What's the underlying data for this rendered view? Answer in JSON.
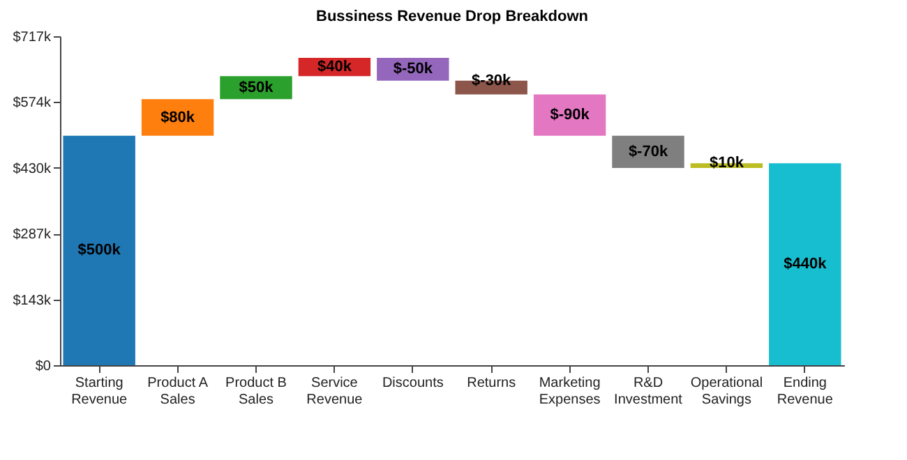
{
  "chart_data": {
    "type": "bar",
    "title": "Bussiness Revenue Drop Breakdown",
    "categories": [
      "Starting Revenue",
      "Product A Sales",
      "Product B Sales",
      "Service Revenue",
      "Discounts",
      "Returns",
      "Marketing Expenses",
      "R&D Investment",
      "Operational Savings",
      "Ending Revenue"
    ],
    "values": [
      500,
      80,
      50,
      40,
      -50,
      -30,
      -90,
      -70,
      10,
      440
    ],
    "base": [
      0,
      500,
      580,
      630,
      670,
      620,
      590,
      500,
      430,
      0
    ],
    "colors": [
      "#1f77b4",
      "#ff7f0e",
      "#2ca02c",
      "#d62728",
      "#9467bd",
      "#8c564b",
      "#e377c2",
      "#7f7f7f",
      "#bcbd22",
      "#17becf"
    ],
    "value_labels": [
      "$500k",
      "$80k",
      "$50k",
      "$40k",
      "$-50k",
      "$-30k",
      "$-90k",
      "$-70k",
      "$10k",
      "$440k"
    ],
    "ylim": [
      0,
      717
    ],
    "yticks": [
      {
        "value": 0,
        "label": "$0"
      },
      {
        "value": 143.4,
        "label": "$143k"
      },
      {
        "value": 286.8,
        "label": "$287k"
      },
      {
        "value": 430.2,
        "label": "$430k"
      },
      {
        "value": 573.6,
        "label": "$574k"
      },
      {
        "value": 717,
        "label": "$717k"
      }
    ],
    "grid": false,
    "legend": false
  }
}
